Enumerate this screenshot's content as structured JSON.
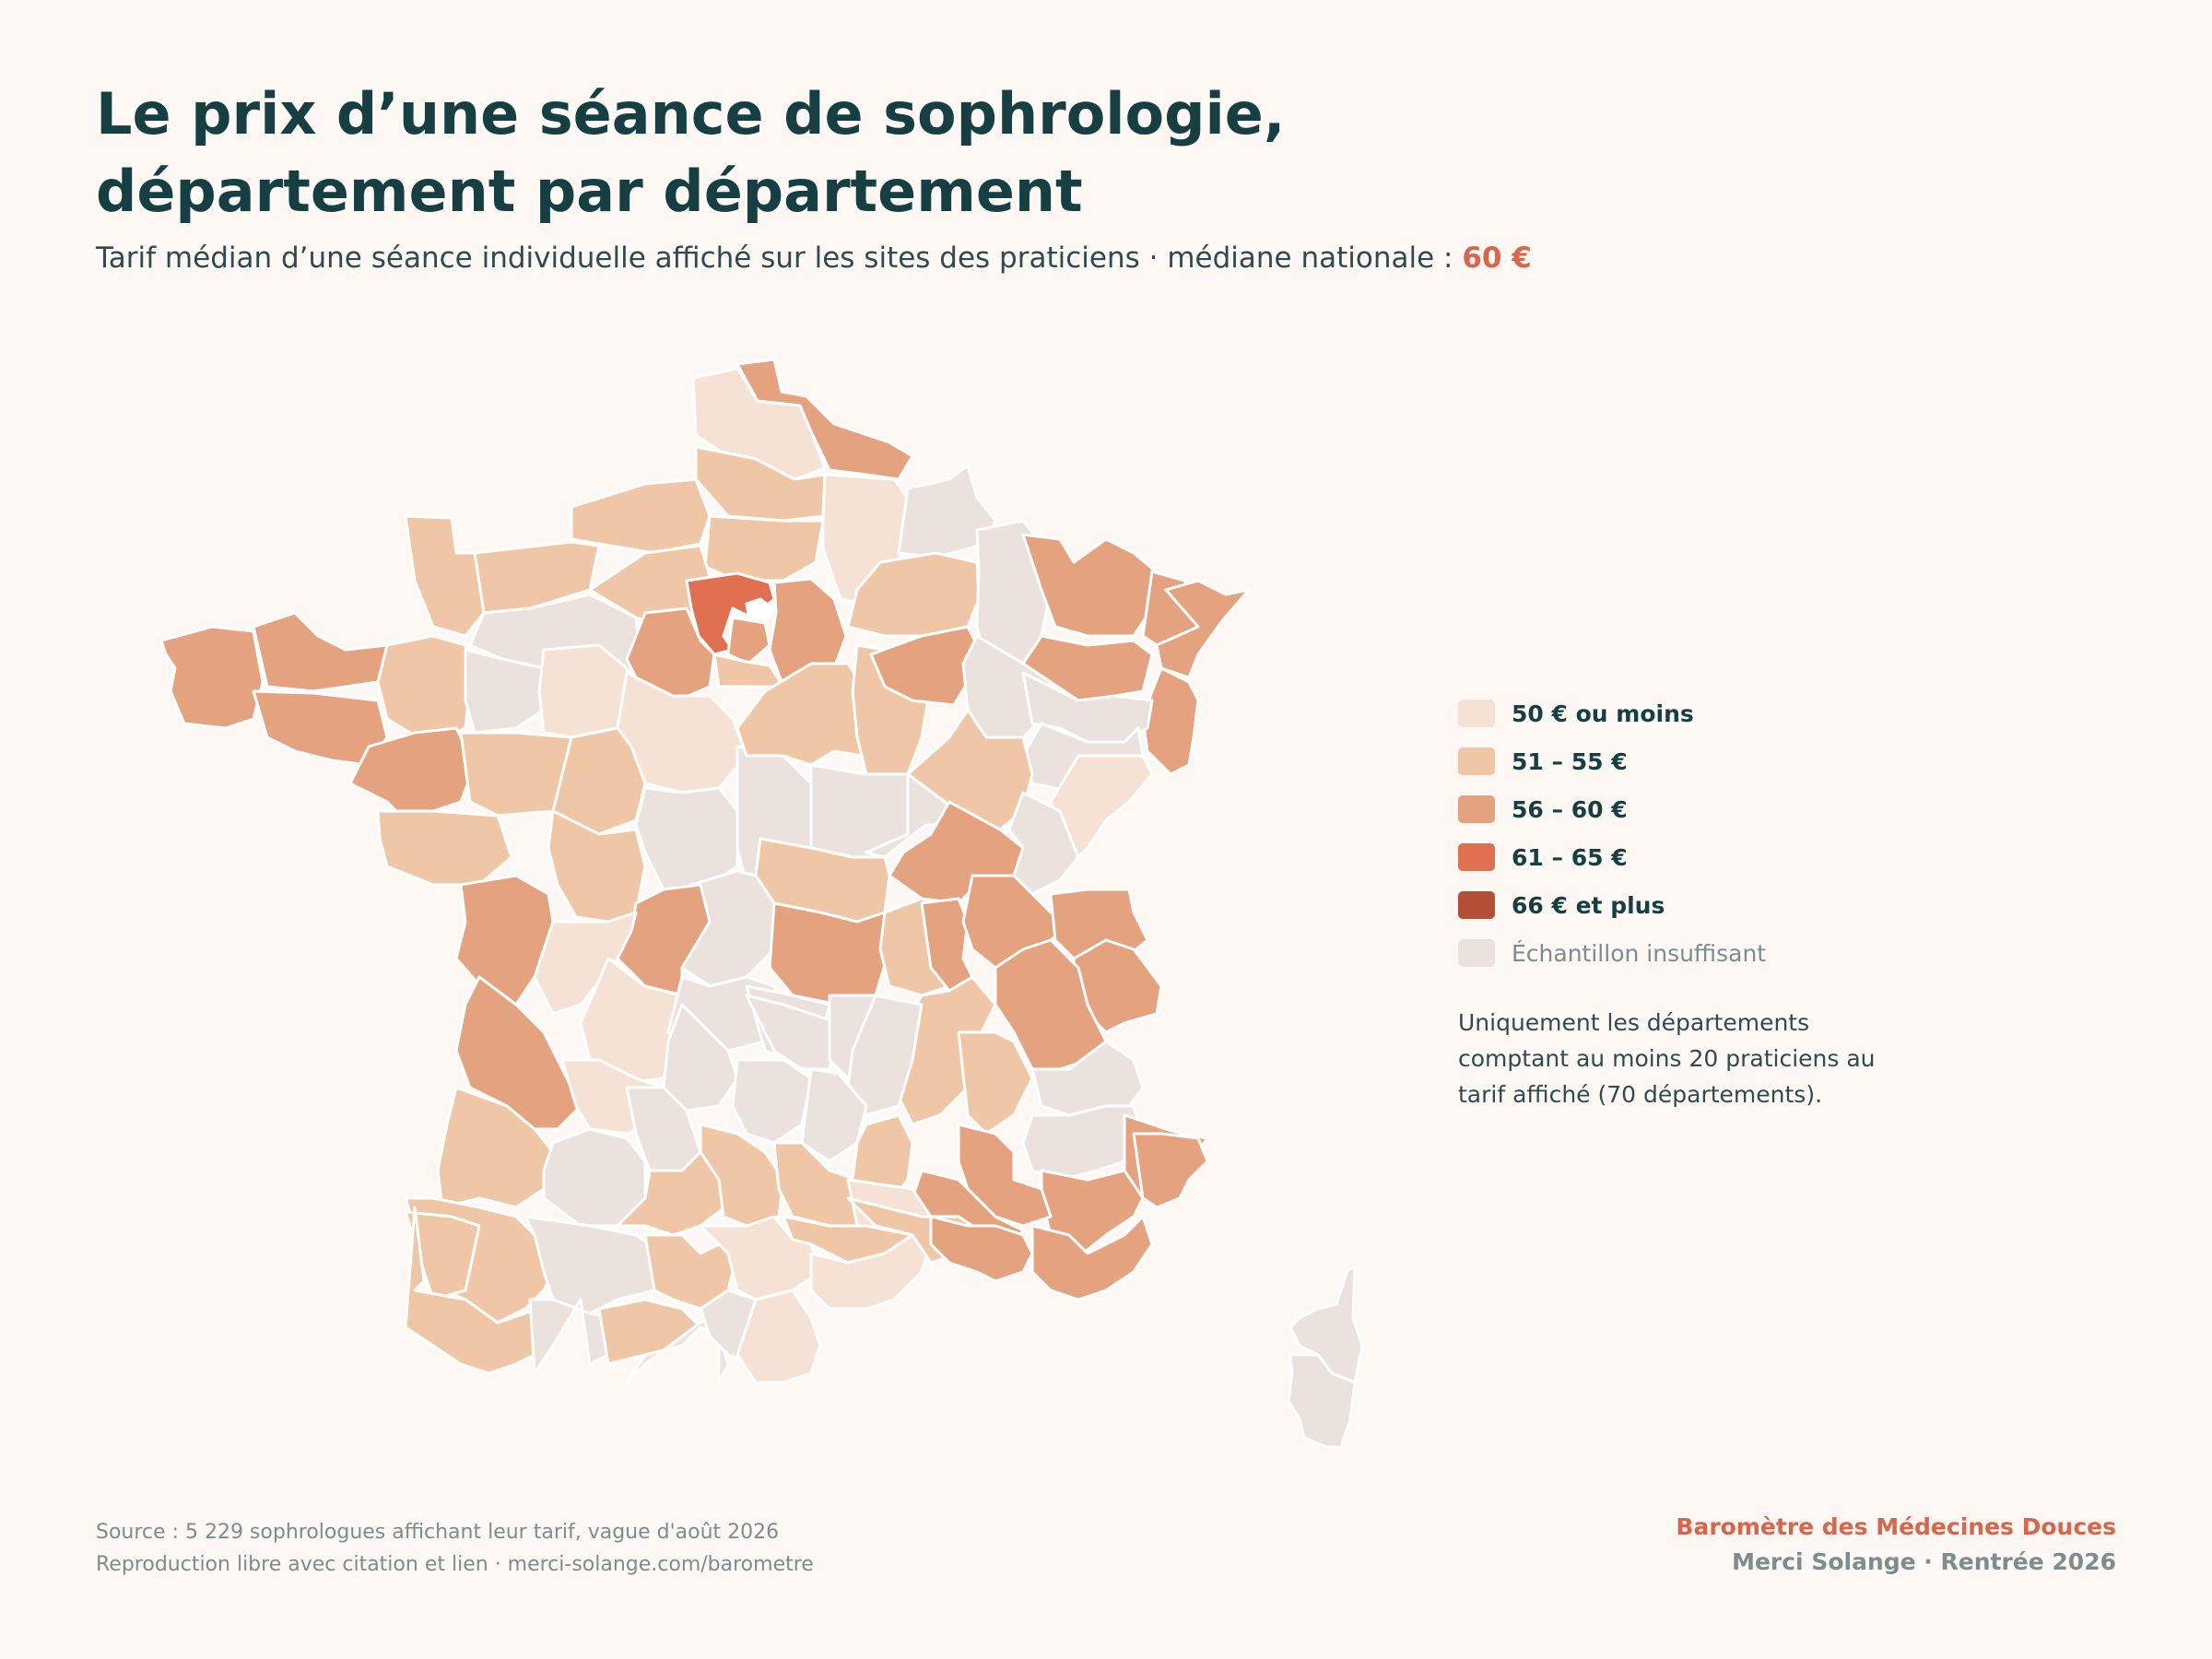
{
  "header": {
    "title_line1": "Le prix d’une séance de sophrologie,",
    "title_line2": "département par département",
    "subtitle": "Tarif médian d’une séance individuelle affiché sur les sites des praticiens · médiane nationale : ",
    "national_median": "60 €"
  },
  "legend": {
    "items": [
      {
        "label": "50 € ou moins",
        "color": "#f6e2d5",
        "class": "le50"
      },
      {
        "label": "51 – 55 €",
        "color": "#f0c7a6",
        "class": "51-55"
      },
      {
        "label": "56 – 60 €",
        "color": "#e5a27e",
        "class": "56-60"
      },
      {
        "label": "61 – 65 €",
        "color": "#df7050",
        "class": "61-65"
      },
      {
        "label": "66 € et plus",
        "color": "#b34f35",
        "class": "ge66"
      },
      {
        "label": "Échantillon insuffisant",
        "color": "#ebe2dd",
        "class": "na"
      }
    ],
    "note": "Uniquement les départements comptant au moins 20 praticiens au tarif affiché (70 départements)."
  },
  "footer": {
    "source": "Source : 5 229 sophrologues affichant leur tarif, vague d'août 2026",
    "reproduction": "Reproduction libre avec citation et lien · merci-solange.com/barometre",
    "brand": "Baromètre des Médecines Douces",
    "brand_sub": "Merci Solange · Rentrée 2026"
  }
}
